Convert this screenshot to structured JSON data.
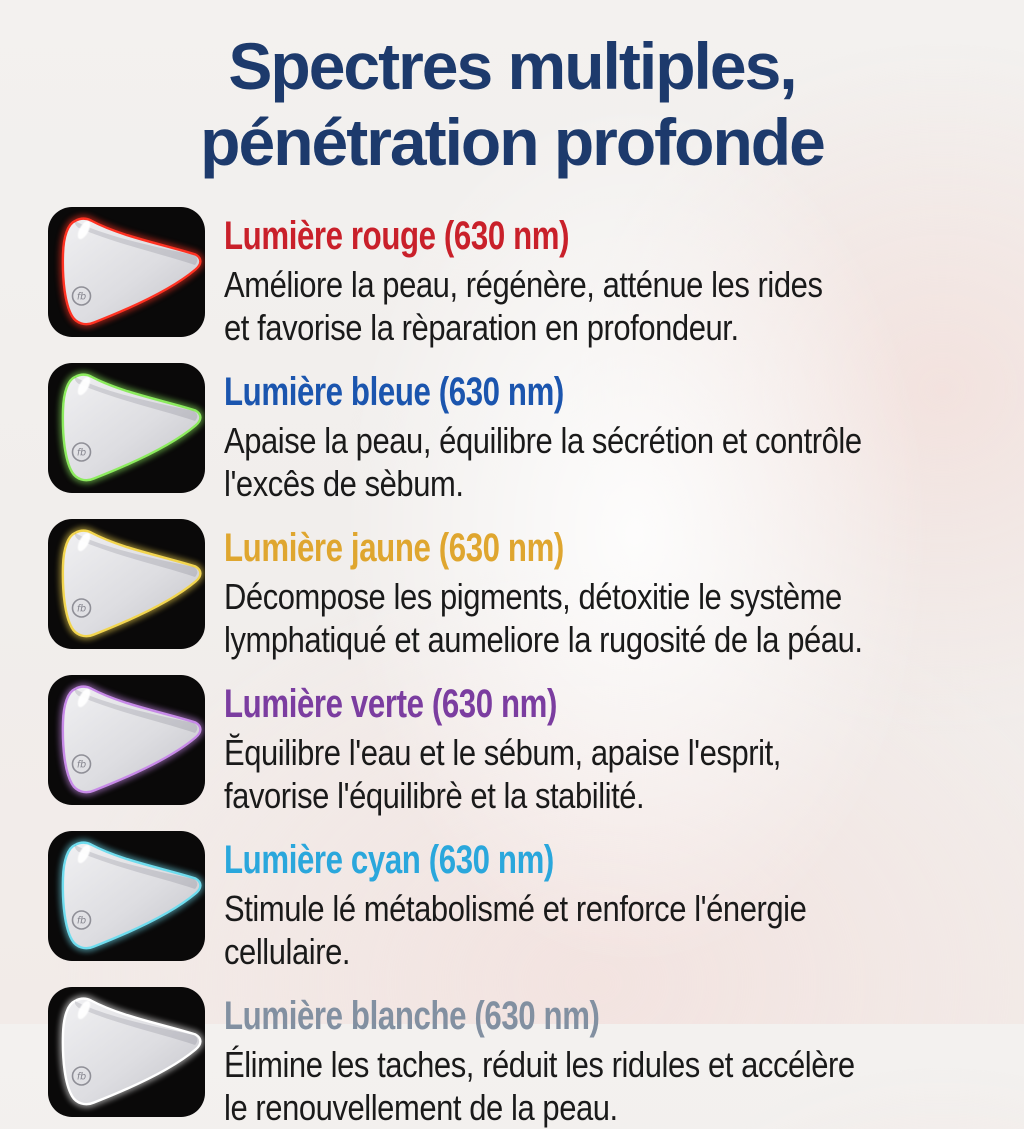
{
  "title": {
    "line1": "Spectres multiples,",
    "line2": "pénétration profonde"
  },
  "colors": {
    "title": "#1d3a6c",
    "body_text": "#1a1a1a",
    "tile_background": "#0a0909",
    "background_base": "#f2efec"
  },
  "rows": [
    {
      "id": "rouge",
      "heading": "Lumière rouge (630 nm)",
      "heading_color": "#c9202a",
      "glow_color": "#ff3222",
      "body_lines": [
        "Améliore la peau, régénère, atténue les rides",
        "et favorise la rèparation en profondeur."
      ]
    },
    {
      "id": "bleue",
      "heading": "Lumière bleue (630 nm)",
      "heading_color": "#1b55ae",
      "glow_color": "#8ceb5e",
      "body_lines": [
        "Apaise la peau, équilibre la sécrétion et contrôle",
        "l'excês de sèbum."
      ]
    },
    {
      "id": "jaune",
      "heading": "Lumière jaune (630 nm)",
      "heading_color": "#dfa62f",
      "glow_color": "#f2d54f",
      "body_lines": [
        "Décompose les pigments, détoxitie le système",
        "lymphatiqué et aumeliore la rugosité de la péau."
      ]
    },
    {
      "id": "verte",
      "heading": "Lumière verte (630 nm)",
      "heading_color": "#7b3da0",
      "glow_color": "#c78ae8",
      "body_lines": [
        "Ĕquilibre l'eau et le sébum, apaise l'esprit,",
        "favorise l'équilibrè et la stabilité."
      ]
    },
    {
      "id": "cyan",
      "heading": "Lumière cyan (630 nm)",
      "heading_color": "#2aa7dc",
      "glow_color": "#6fdcee",
      "body_lines": [
        "Stimule lé métabolismé et renforce l'énergie",
        "cellulaire."
      ]
    },
    {
      "id": "blanche",
      "heading": "Lumière blanche (630 nm)",
      "heading_color": "#8290a1",
      "glow_color": "#ffffff",
      "body_lines": [
        "Élimine les taches, réduit les ridules et accélère",
        "le renouvellement de la peau."
      ]
    }
  ],
  "mask_icon": {
    "logo_monogram": "fb"
  }
}
